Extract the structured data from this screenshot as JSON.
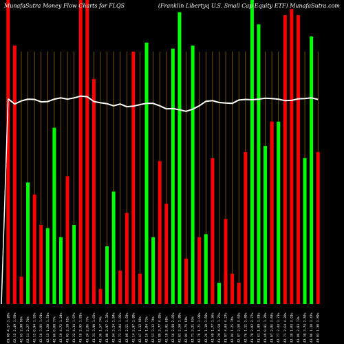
{
  "header": {
    "left_title": "MunafaSutra  Money Flow  Charts for FLQS",
    "right_title": "(Franklin  Libertyq U.S. Small Cap Equity ETF) MunafaSutra.com"
  },
  "colors": {
    "background": "#000000",
    "up_bar": "#00ff00",
    "down_bar": "#ff0000",
    "grid": "#b8860b",
    "line": "#ffffff"
  },
  "chart_data": {
    "type": "bar",
    "title": "",
    "grid": "vertical",
    "ylim": [
      0,
      100
    ],
    "categories": [
      "05 Mar 2024",
      "06 Mar 2024",
      "07 Mar 2024",
      "08 Mar 2024",
      "11 Mar 2024",
      "12 Mar 2024",
      "13 Mar 2024",
      "14 Mar 2024",
      "15 Mar 2024",
      "18 Mar 2024",
      "19 Mar 2024",
      "20 Mar 2024",
      "21 Mar 2024",
      "22 Mar 2024",
      "25 Mar 2024",
      "26 Mar 2024",
      "27 Mar 2024",
      "28 Mar 2024",
      "01 Apr 2024",
      "02 Apr 2024",
      "03 Apr 2024",
      "04 Apr 2024",
      "05 Apr 2024",
      "08 Apr 2024",
      "09 Apr 2024",
      "10 Apr 2024",
      "11 Apr 2024",
      "12 Apr 2024",
      "15 Apr 2024",
      "16 Apr 2024",
      "17 Apr 2024",
      "18 Apr 2024",
      "19 Apr 2024",
      "22 Apr 2024",
      "23 Apr 2024",
      "24 Apr 2024",
      "25 Apr 2024",
      "26 Apr 2024",
      "29 Apr 2024",
      "30 Apr 2024",
      "01 May 2024",
      "02 May 2024",
      "03 May 2024",
      "06 May 2024",
      "07 May 2024",
      "08 May 2024",
      "09 May 2024",
      "10 May 2024"
    ],
    "x_tick_labels": [
      "03.09 4.17 3.28%",
      "62.15 2.49 1.93%",
      "42.65 2.90 96%",
      "62.11 2.27 76%",
      "42.15 0.94 1.93%",
      "42.16 3.85 1.91%",
      "42.15 1.28 1.51%",
      "42.06 0.08 77%",
      "43.19 4.72 1.24%",
      "43.03 2.18 91%",
      "43.22 4.34 1.97%",
      "43.16 2.95 1.81%",
      "43.24 2.86 77%",
      "43.31 3.90 1.65%",
      "43.36 1.57 74%",
      "43.00 2.97 3.32%",
      "42.94 3.14 1.84%",
      "42.73 3.04 1.85%",
      "42.09 2.51 1.83%",
      "42.14 2.97 1.88%",
      "42.47 1.12 96%",
      "42.16 1.04 73%",
      "42.51 3.32 76%",
      "42.89 3.77 4.85%",
      "42.10 2.01 68%",
      "42.56 2.98 2.85%",
      "42.81 2.50 1.88%",
      "42.84 1.75 68%",
      "42.71 3.21 93%",
      "42.76 1.71 3.08%",
      "42.26 1.10 3.68%",
      "42.49 1.77 1.36%",
      "41.29 4.58 1.75%",
      "41.97 4.84 4.27%",
      "42.84 1.25 76%",
      "42.87 2.50 3.62%",
      "42.76 1.11 3.49%",
      "41.78 2.82 2.77%",
      "41.61 1.89 1.81%",
      "41.49 0.01 1.70%",
      "43.07 2.86 3.68%",
      "42.77 2.44 3.71%",
      "42.71 2.64 4.28%",
      "42.39 1.04 3.91%",
      "43.06 2.83 73%",
      "43.38 3.74 2.84%",
      "43.96 1.10 3.47%",
      "43.03 1.30 3.89%"
    ],
    "colors": [
      "down",
      "down",
      "down",
      "up",
      "down",
      "down",
      "up",
      "up",
      "up",
      "down",
      "up",
      "down",
      "down",
      "down",
      "down",
      "up",
      "up",
      "down",
      "down",
      "down",
      "down",
      "up",
      "up",
      "down",
      "down",
      "up",
      "up",
      "down",
      "up",
      "down",
      "up",
      "down",
      "up",
      "down",
      "down",
      "down",
      "down",
      "up",
      "up",
      "up",
      "down",
      "up",
      "down",
      "down",
      "down",
      "up",
      "up",
      "down"
    ],
    "values": [
      100,
      85,
      9,
      40,
      36,
      26,
      25,
      58,
      22,
      42,
      26,
      100,
      100,
      74,
      5,
      19,
      37,
      11,
      30,
      83,
      10,
      86,
      22,
      47,
      33,
      84,
      96,
      15,
      85,
      22,
      23,
      48,
      7,
      28,
      10,
      7,
      50,
      100,
      92,
      52,
      60,
      60,
      95,
      97,
      95,
      48,
      88,
      50
    ],
    "line_values": [
      67.5,
      65.8,
      66.8,
      67.4,
      67.3,
      66.5,
      66.6,
      67.4,
      67.8,
      67.4,
      67.8,
      68.4,
      68.2,
      66.6,
      66.2,
      65.9,
      65.2,
      65.8,
      64.9,
      65.1,
      65.6,
      66.0,
      66.0,
      65.2,
      64.2,
      64.3,
      63.9,
      63.4,
      64.1,
      65.2,
      66.7,
      66.9,
      66.3,
      66.1,
      66.0,
      67.1,
      67.3,
      67.2,
      67.4,
      67.7,
      67.6,
      67.4,
      66.9,
      67.0,
      67.5,
      67.6,
      67.8,
      67.3
    ],
    "line_points": [
      [
        0,
        67.5
      ],
      [
        2,
        65.8
      ],
      [
        4,
        66.8
      ],
      [
        6,
        67.4
      ],
      [
        8,
        67.3
      ],
      [
        10,
        66.5
      ],
      [
        12,
        66.6
      ],
      [
        14,
        67.4
      ],
      [
        16,
        67.8
      ],
      [
        18,
        67.4
      ],
      [
        20,
        67.8
      ],
      [
        22,
        68.4
      ],
      [
        24,
        68.2
      ],
      [
        26,
        66.6
      ],
      [
        28,
        66.2
      ],
      [
        30,
        65.9
      ],
      [
        32,
        65.2
      ],
      [
        34,
        65.8
      ],
      [
        36,
        64.9
      ],
      [
        38,
        65.1
      ],
      [
        40,
        65.6
      ],
      [
        42,
        66.0
      ],
      [
        44,
        66.0
      ],
      [
        46,
        65.2
      ],
      [
        48,
        64.2
      ],
      [
        50,
        64.3
      ],
      [
        52,
        63.9
      ],
      [
        54,
        63.4
      ],
      [
        56,
        64.1
      ],
      [
        58,
        65.2
      ],
      [
        60,
        66.7
      ],
      [
        62,
        66.9
      ],
      [
        64,
        66.3
      ],
      [
        66,
        66.1
      ],
      [
        68,
        66.0
      ],
      [
        70,
        67.1
      ],
      [
        72,
        67.3
      ],
      [
        74,
        67.2
      ],
      [
        76,
        67.4
      ],
      [
        78,
        67.7
      ],
      [
        80,
        67.6
      ],
      [
        82,
        67.4
      ],
      [
        84,
        66.9
      ],
      [
        86,
        67.0
      ],
      [
        88,
        67.5
      ],
      [
        90,
        67.6
      ],
      [
        92,
        67.8
      ],
      [
        94,
        67.3
      ]
    ]
  }
}
